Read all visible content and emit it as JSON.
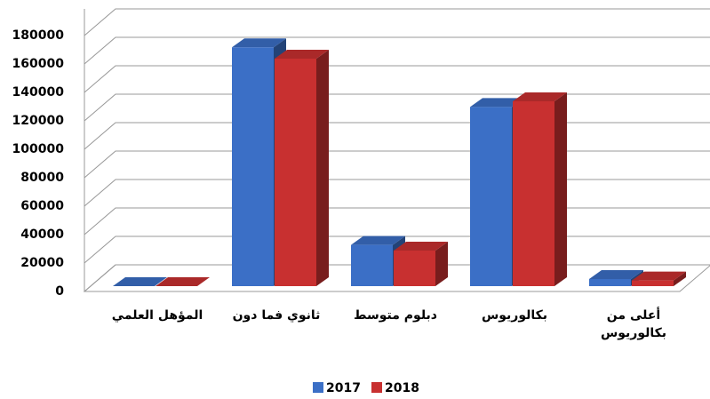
{
  "chart_data": {
    "type": "bar3d",
    "categories": [
      "المؤهل العلمي",
      "ثانوي فما دون",
      "دبلوم متوسط",
      "بكالوريوس",
      "أعلى من بكالوريوس"
    ],
    "series": [
      {
        "name": "2017",
        "color": "#3b6fc6",
        "values": [
          0,
          168000,
          29000,
          126000,
          5000
        ]
      },
      {
        "name": "2018",
        "color": "#c83030",
        "values": [
          0,
          160000,
          25000,
          130000,
          4000
        ]
      }
    ],
    "ylim": [
      0,
      180000
    ],
    "yticks": [
      0,
      20000,
      40000,
      60000,
      80000,
      100000,
      120000,
      140000,
      160000,
      180000
    ],
    "grid": true,
    "legend": "bottom"
  }
}
